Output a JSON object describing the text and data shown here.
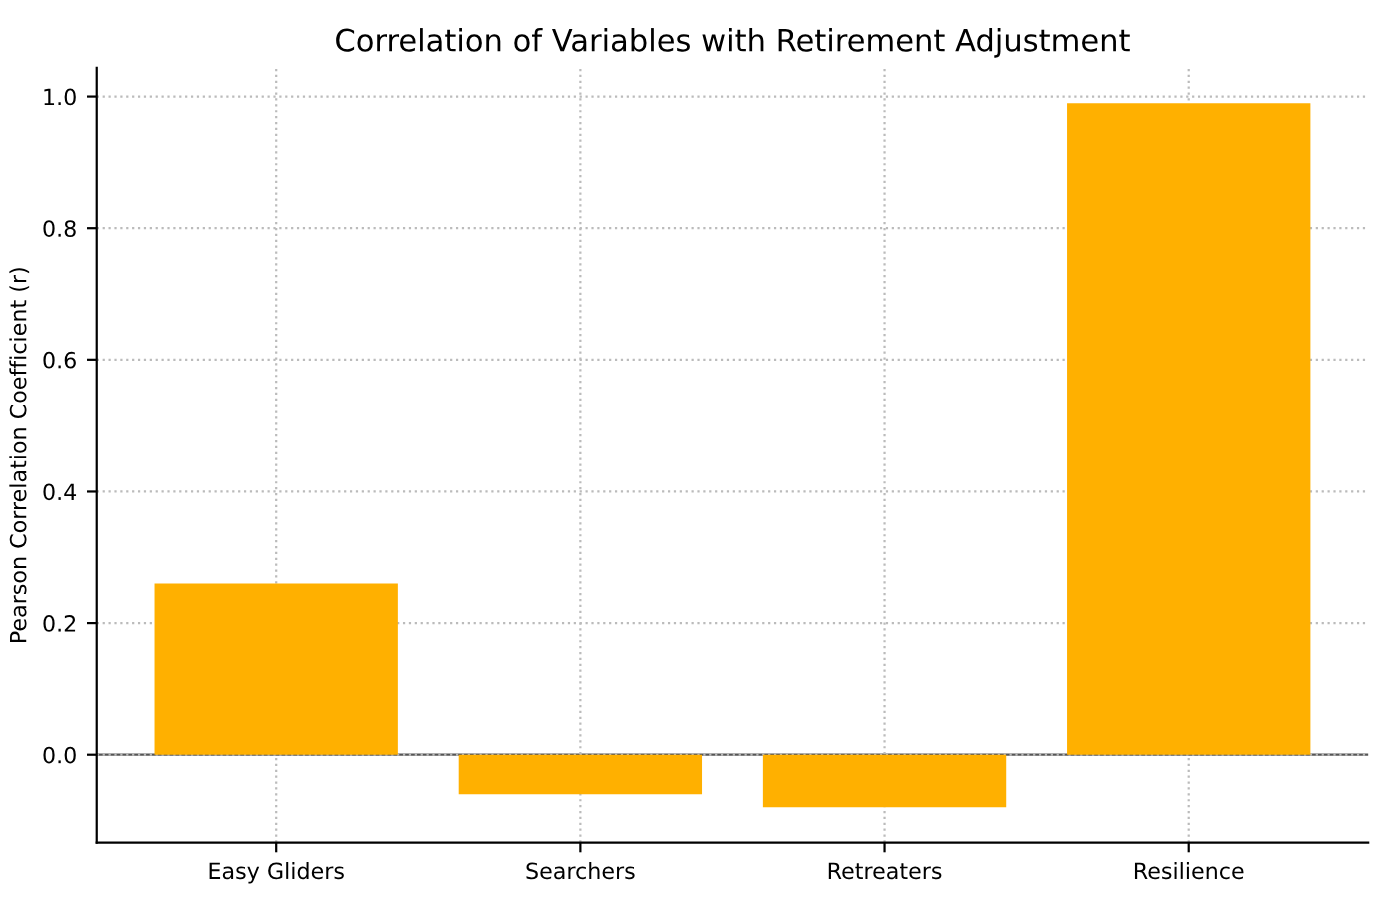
{
  "chart_data": {
    "type": "bar",
    "title": "Correlation of Variables with Retirement Adjustment",
    "ylabel": "Pearson Correlation Coefficient (r)",
    "categories": [
      "Easy Gliders",
      "Searchers",
      "Retreaters",
      "Resilience"
    ],
    "values": [
      0.26,
      -0.06,
      -0.08,
      0.99
    ],
    "color": "#ffb000",
    "ylim": [
      -0.1335,
      1.0435
    ],
    "yticks": [
      {
        "value": 0,
        "label": "0.0"
      },
      0.2,
      0.4,
      0.6,
      0.8,
      {
        "value": 1,
        "label": "1.0"
      }
    ],
    "grid": true,
    "ref_lines": [
      {
        "axis": "y",
        "value": 0,
        "color": "#555555"
      }
    ]
  }
}
